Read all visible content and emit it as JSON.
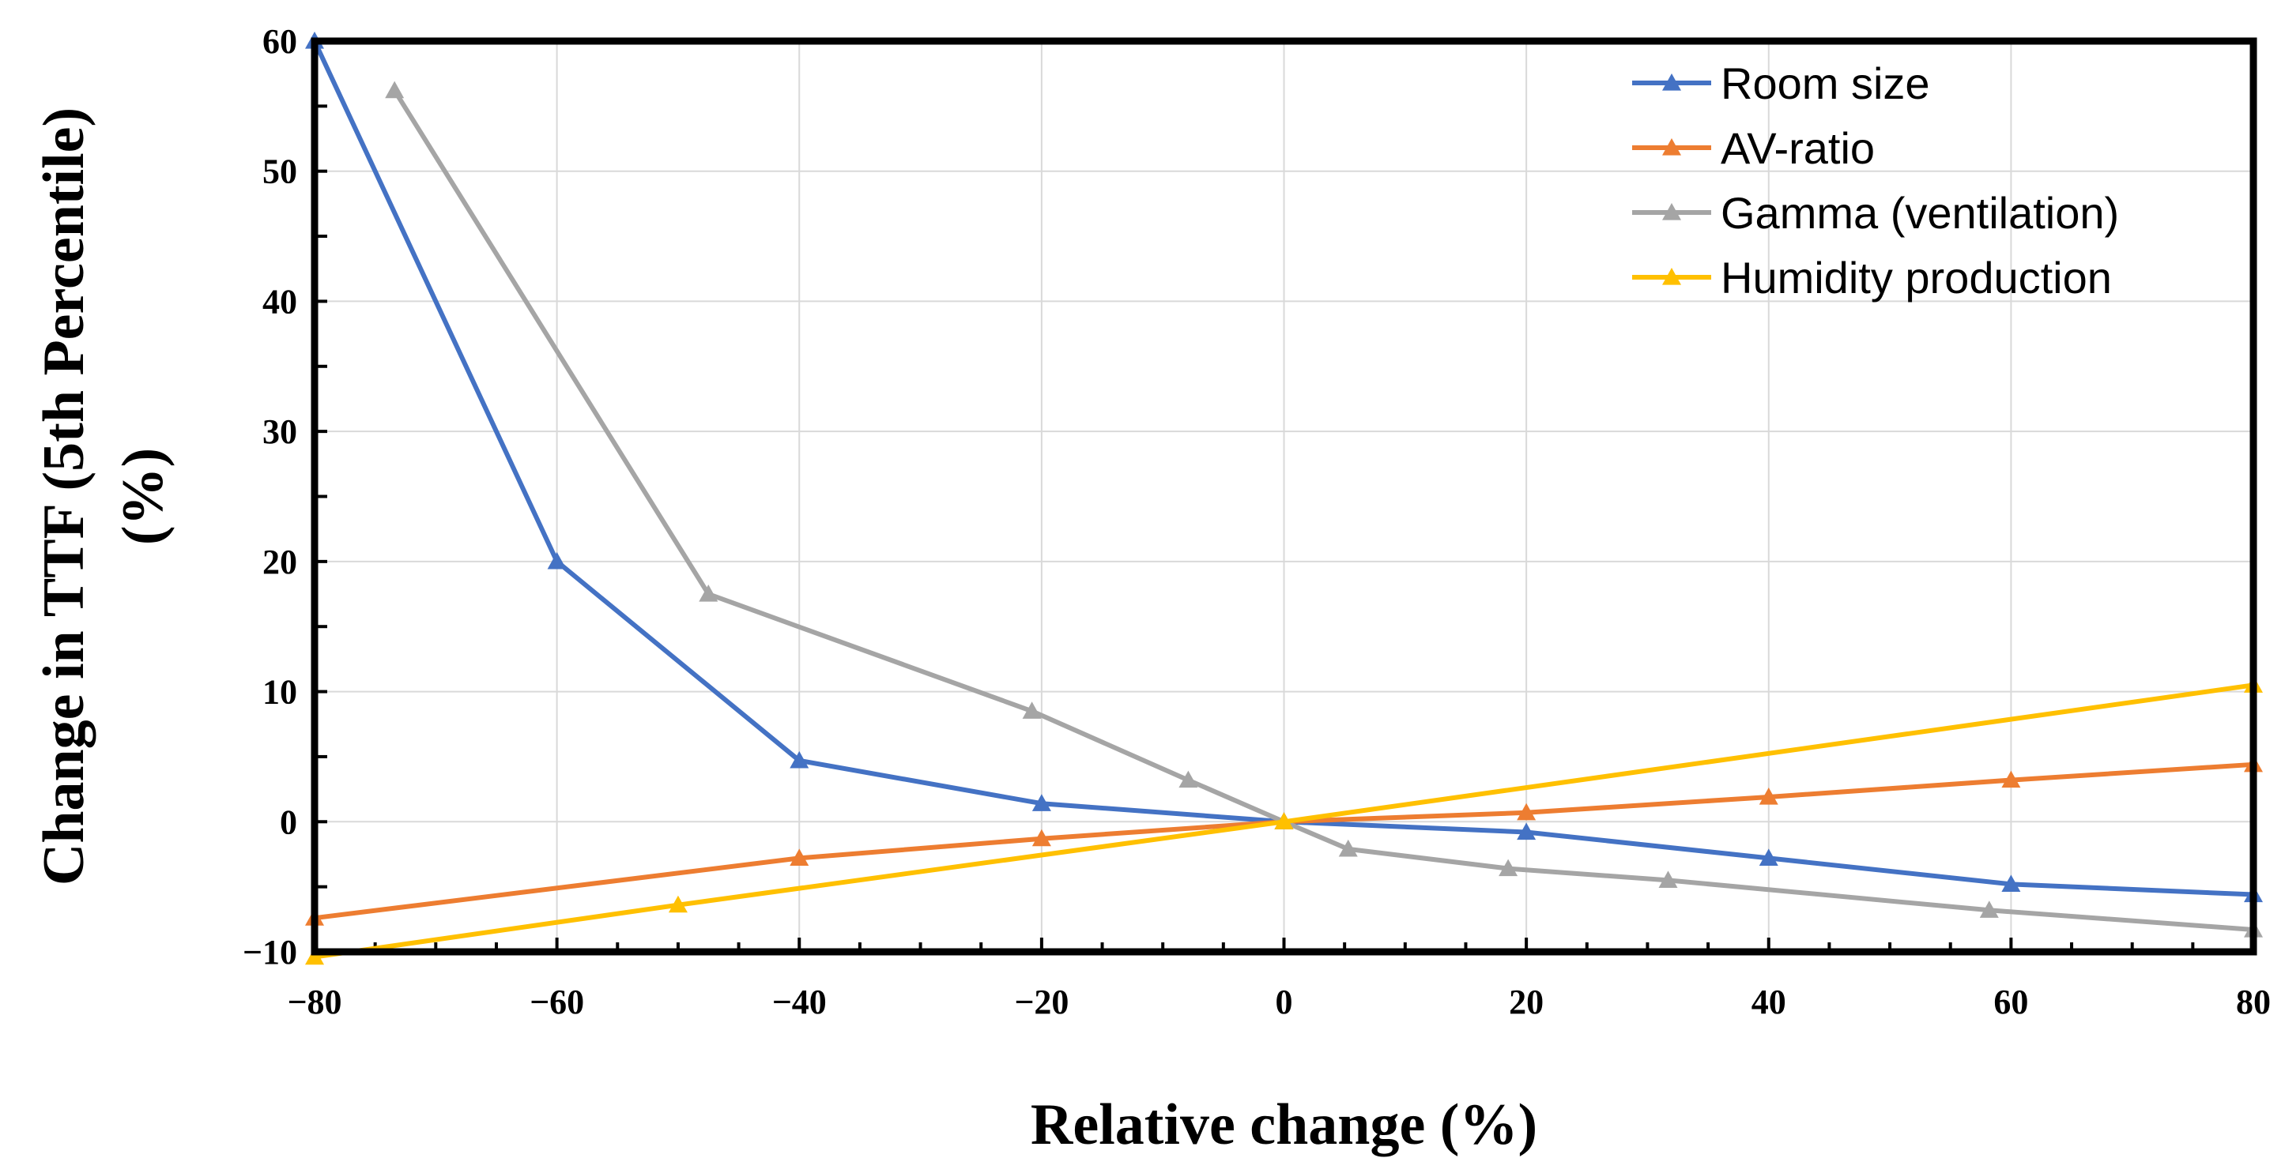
{
  "chart_data": {
    "type": "line",
    "title": "",
    "xlabel": "Relative change (%)",
    "ylabel_line1": "Change  in TTF (5th Percentile)",
    "ylabel_line2": "(%)",
    "xlim": [
      -80,
      80
    ],
    "ylim": [
      -10,
      60
    ],
    "x_ticks": [
      -80,
      -60,
      -40,
      -20,
      0,
      20,
      40,
      60,
      80
    ],
    "x_tick_labels": [
      "-80",
      "-60",
      "-40",
      "-20",
      "0",
      "20",
      "40",
      "60",
      "80"
    ],
    "y_ticks": [
      -10,
      0,
      10,
      20,
      30,
      40,
      50,
      60
    ],
    "y_tick_labels": [
      "-10",
      "0",
      "10",
      "20",
      "30",
      "40",
      "50",
      "60"
    ],
    "grid": true,
    "legend_position": "top-right",
    "series": [
      {
        "name": "Room size",
        "color": "#4472C4",
        "x": [
          -80,
          -60,
          -40,
          -20,
          0,
          20,
          40,
          60,
          80
        ],
        "y": [
          60,
          20,
          4.7,
          1.4,
          0,
          -0.8,
          -2.8,
          -4.8,
          -5.6
        ]
      },
      {
        "name": "AV-ratio",
        "color": "#ED7D31",
        "x": [
          -80,
          -40,
          -20,
          0,
          20,
          40,
          60,
          80
        ],
        "y": [
          -7.4,
          -2.8,
          -1.3,
          0,
          0.7,
          1.9,
          3.2,
          4.4
        ]
      },
      {
        "name": "Gamma (ventilation)",
        "color": "#A5A5A5",
        "x": [
          -73.4,
          -47.5,
          -20.8,
          -7.9,
          0,
          5.3,
          18.5,
          31.7,
          58.2,
          80
        ],
        "y": [
          56.2,
          17.5,
          8.5,
          3.2,
          0,
          -2.1,
          -3.6,
          -4.5,
          -6.8,
          -8.3
        ]
      },
      {
        "name": "Humidity production",
        "color": "#FFC000",
        "x": [
          -80,
          -50,
          0,
          80
        ],
        "y": [
          -10.4,
          -6.4,
          0,
          10.5
        ]
      }
    ]
  }
}
